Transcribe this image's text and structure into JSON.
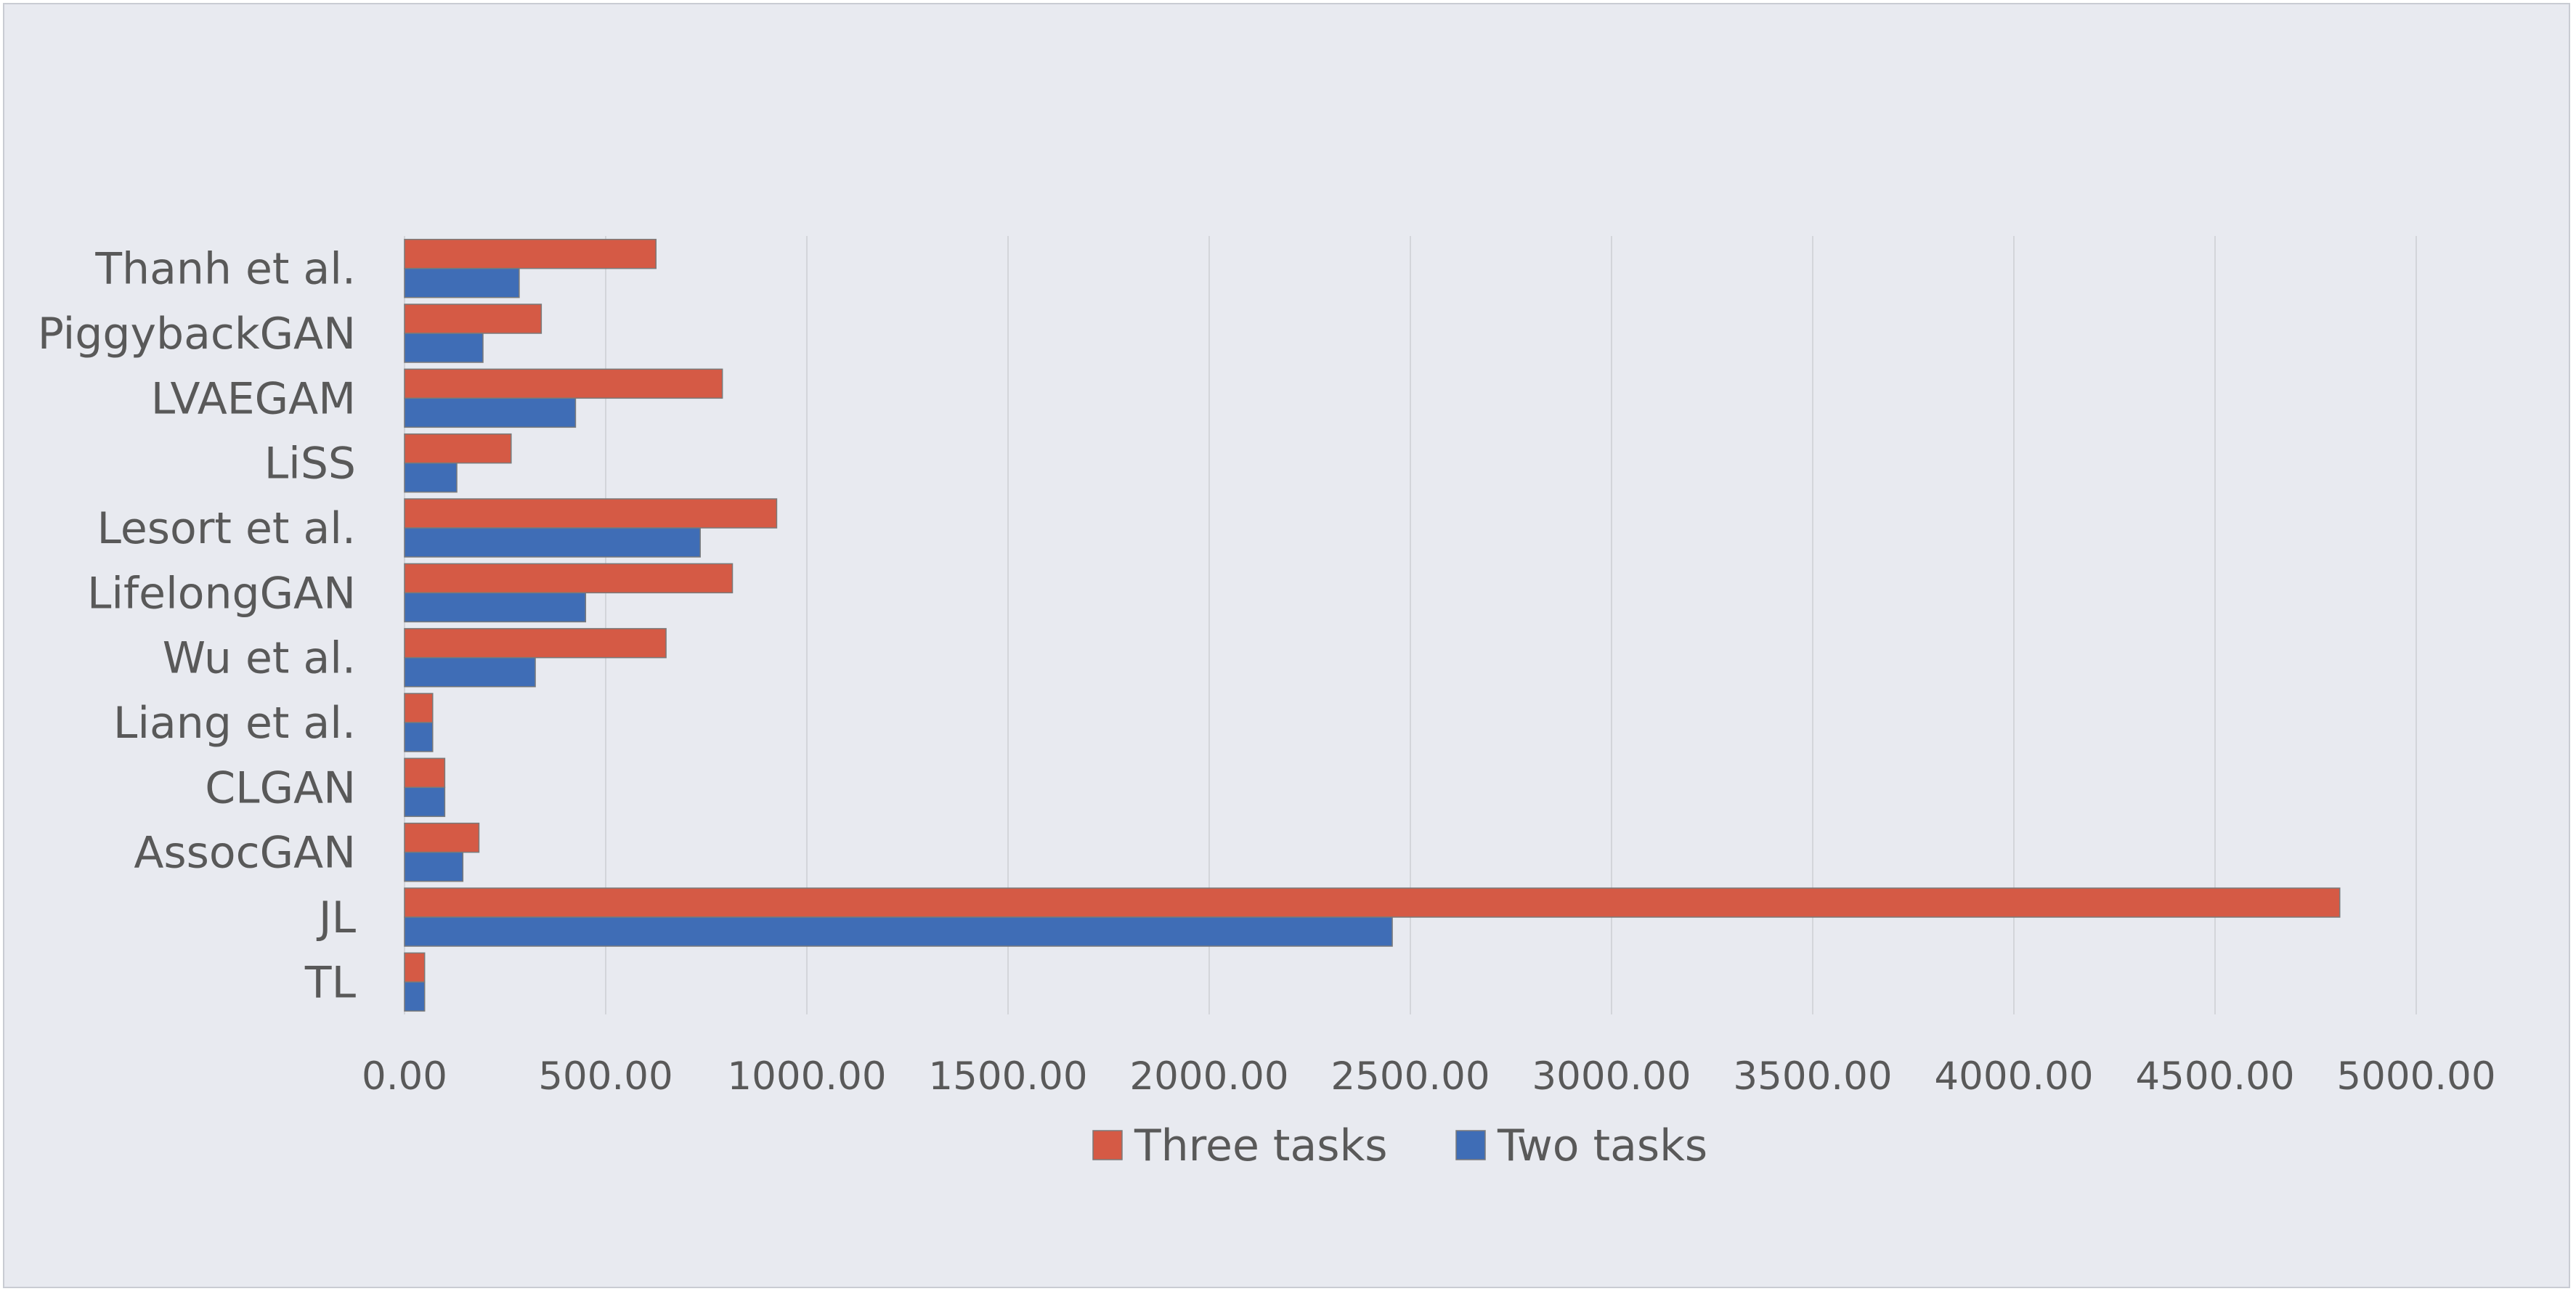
{
  "chart_data": {
    "type": "bar",
    "orientation": "horizontal",
    "categories": [
      "TL",
      "JL",
      "AssocGAN",
      "CLGAN",
      "Liang et al.",
      "Wu et al.",
      "LifelongGAN",
      "Lesort et al.",
      "LiSS",
      "LVAEGAM",
      "PiggybackGAN",
      "Thanh et al."
    ],
    "series": [
      {
        "name": "Three tasks",
        "color": "#d55a45",
        "values": [
          50,
          4810,
          185,
          100,
          70,
          650,
          815,
          925,
          265,
          790,
          340,
          625
        ]
      },
      {
        "name": "Two tasks",
        "color": "#3f6db6",
        "values": [
          50,
          2455,
          145,
          100,
          70,
          325,
          450,
          735,
          130,
          425,
          195,
          285
        ]
      }
    ],
    "xlim": [
      0,
      5000
    ],
    "xticks": [
      "0.00",
      "500.00",
      "1000.00",
      "1500.00",
      "2000.00",
      "2500.00",
      "3000.00",
      "3500.00",
      "4000.00",
      "4500.00",
      "5000.00"
    ],
    "grid": "vertical",
    "legend": "bottom",
    "title": "",
    "xlabel": "",
    "ylabel": ""
  }
}
